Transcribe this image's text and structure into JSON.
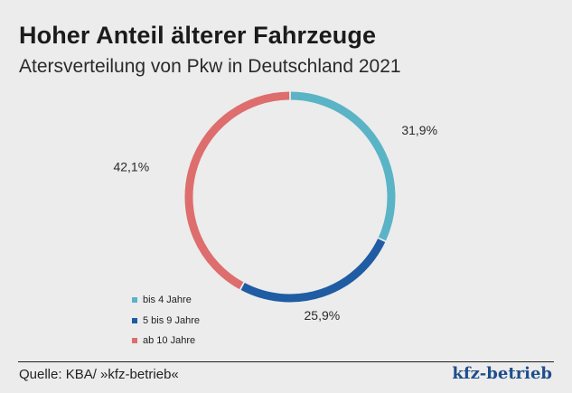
{
  "header": {
    "title": "Hoher Anteil älterer Fahrzeuge",
    "subtitle": "Atersverteilung von Pkw in Deutschland 2021"
  },
  "chart_data": {
    "type": "pie",
    "title": "Hoher Anteil älterer Fahrzeuge",
    "subtitle": "Atersverteilung von Pkw in Deutschland 2021",
    "donut": true,
    "unit": "%",
    "legend_position": "bottom-left",
    "slices": [
      {
        "name": "bis 4 Jahre",
        "value": 31.9,
        "label": "31,9%",
        "color": "#5ab4c6"
      },
      {
        "name": "5 bis 9 Jahre",
        "value": 25.9,
        "label": "25,9%",
        "color": "#1f5ca3"
      },
      {
        "name": "ab 10 Jahre",
        "value": 42.1,
        "label": "42,1%",
        "color": "#dd6e6d"
      }
    ]
  },
  "footer": {
    "source": "Quelle: KBA/ »kfz-betrieb«",
    "logo": "kfz-betrieb"
  }
}
